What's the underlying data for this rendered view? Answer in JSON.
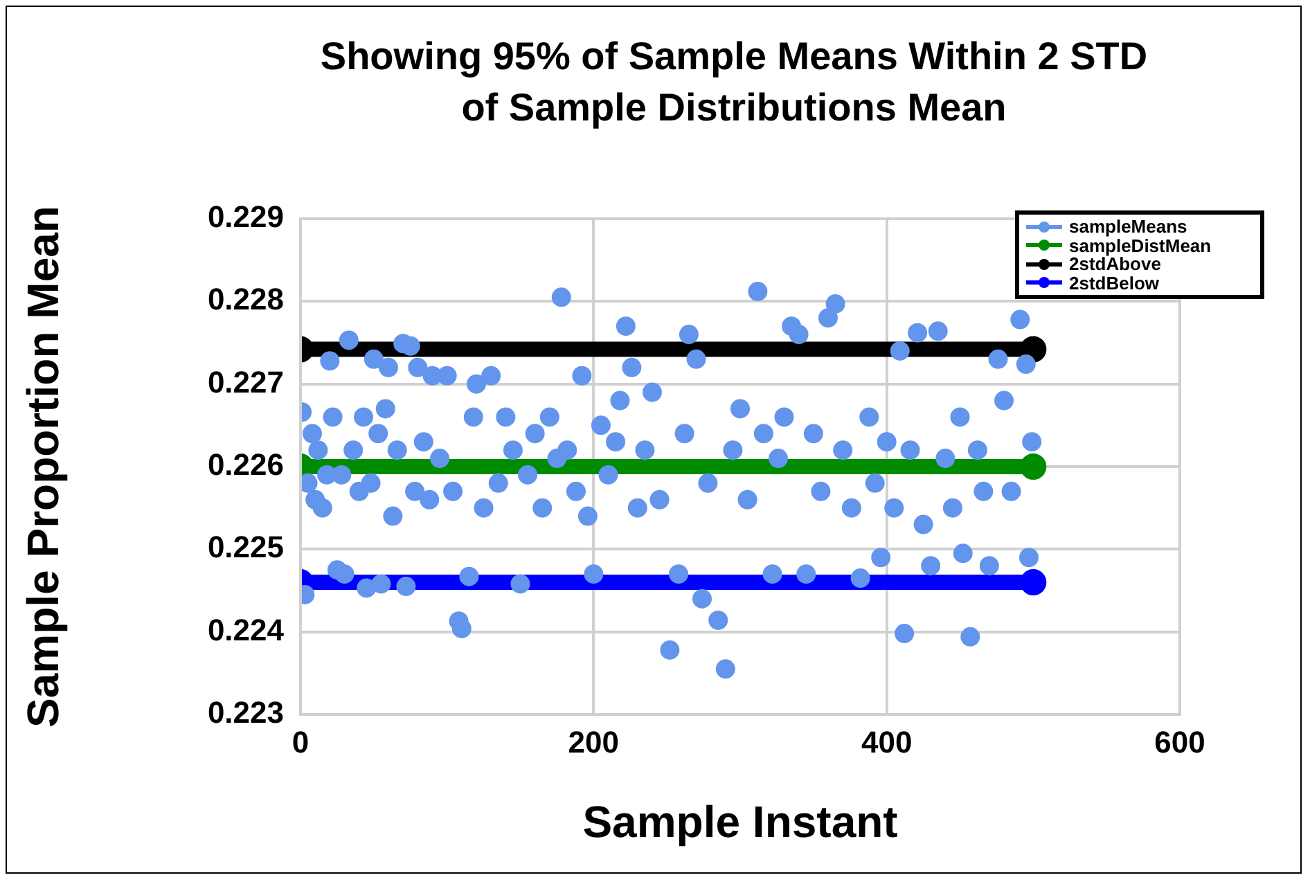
{
  "chart_data": {
    "type": "scatter",
    "title": "Showing 95% of Sample Means Within 2 STD\nof Sample Distributions Mean",
    "xlabel": "Sample Instant",
    "ylabel": "Sample Proportion Mean",
    "xlim": [
      0,
      600
    ],
    "xticks": [
      0,
      200,
      400,
      600
    ],
    "ylim": [
      0.223,
      0.229
    ],
    "yticks": [
      0.223,
      0.224,
      0.225,
      0.226,
      0.227,
      0.228,
      0.229
    ],
    "grid": true,
    "legend": "top right",
    "marker": "circle",
    "series": [
      {
        "name": "sampleMeans",
        "color": "#6495ed",
        "x": [
          1,
          3,
          5,
          8,
          10,
          12,
          15,
          18,
          20,
          22,
          25,
          28,
          30,
          33,
          36,
          40,
          43,
          45,
          48,
          50,
          53,
          55,
          58,
          60,
          63,
          66,
          70,
          72,
          75,
          78,
          80,
          84,
          88,
          90,
          95,
          100,
          104,
          108,
          110,
          115,
          118,
          120,
          125,
          130,
          135,
          140,
          145,
          150,
          155,
          160,
          165,
          170,
          175,
          178,
          182,
          188,
          192,
          196,
          200,
          205,
          210,
          215,
          218,
          222,
          226,
          230,
          235,
          240,
          245,
          252,
          258,
          262,
          265,
          270,
          274,
          278,
          285,
          290,
          295,
          300,
          305,
          312,
          316,
          322,
          326,
          330,
          335,
          340,
          345,
          350,
          355,
          360,
          365,
          370,
          376,
          382,
          388,
          392,
          396,
          400,
          405,
          409,
          412,
          416,
          421,
          425,
          430,
          435,
          440,
          445,
          450,
          452,
          457,
          462,
          466,
          470,
          476,
          480,
          485,
          491,
          495,
          497,
          499
        ],
        "values": [
          0.22666,
          0.22445,
          0.2258,
          0.2264,
          0.2256,
          0.2262,
          0.2255,
          0.2259,
          0.22728,
          0.2266,
          0.22475,
          0.2259,
          0.2247,
          0.22753,
          0.2262,
          0.2257,
          0.2266,
          0.22453,
          0.2258,
          0.2273,
          0.2264,
          0.22458,
          0.2267,
          0.2272,
          0.2254,
          0.2262,
          0.22749,
          0.22455,
          0.22746,
          0.2257,
          0.2272,
          0.2263,
          0.2256,
          0.2271,
          0.2261,
          0.2271,
          0.2257,
          0.22413,
          0.22404,
          0.22467,
          0.2266,
          0.227,
          0.2255,
          0.2271,
          0.2258,
          0.2266,
          0.2262,
          0.22458,
          0.2259,
          0.2264,
          0.2255,
          0.2266,
          0.2261,
          0.22805,
          0.2262,
          0.2257,
          0.2271,
          0.2254,
          0.2247,
          0.2265,
          0.2259,
          0.2263,
          0.2268,
          0.2277,
          0.2272,
          0.2255,
          0.2262,
          0.2269,
          0.2256,
          0.22378,
          0.2247,
          0.2264,
          0.2276,
          0.2273,
          0.2244,
          0.2258,
          0.22414,
          0.22355,
          0.2262,
          0.2267,
          0.2256,
          0.22812,
          0.2264,
          0.2247,
          0.2261,
          0.2266,
          0.2277,
          0.2276,
          0.2247,
          0.2264,
          0.2257,
          0.2278,
          0.22797,
          0.2262,
          0.2255,
          0.22465,
          0.2266,
          0.2258,
          0.2249,
          0.2263,
          0.2255,
          0.2274,
          0.22398,
          0.2262,
          0.22762,
          0.2253,
          0.2248,
          0.22764,
          0.2261,
          0.2255,
          0.2266,
          0.22495,
          0.22394,
          0.2262,
          0.2257,
          0.2248,
          0.2273,
          0.2268,
          0.2257,
          0.22778,
          0.22724,
          0.2249,
          0.2263
        ]
      },
      {
        "name": "sampleDistMean",
        "color": "#008c00",
        "type": "line",
        "x": [
          0,
          500
        ],
        "values": [
          0.226,
          0.226
        ]
      },
      {
        "name": "2stdAbove",
        "color": "#000000",
        "type": "line",
        "x": [
          0,
          500
        ],
        "values": [
          0.22742,
          0.22742
        ]
      },
      {
        "name": "2stdBelow",
        "color": "#0000ff",
        "type": "line",
        "x": [
          0,
          500
        ],
        "values": [
          0.2246,
          0.2246
        ]
      }
    ]
  }
}
